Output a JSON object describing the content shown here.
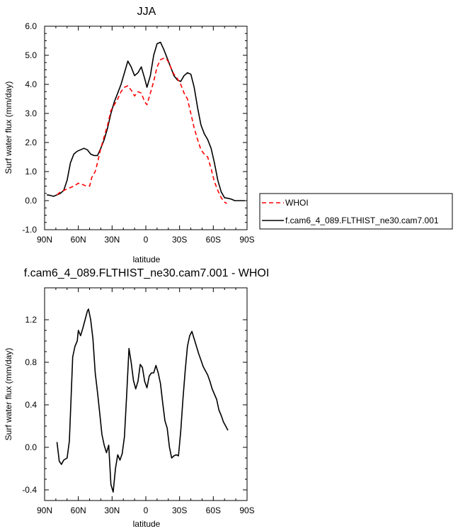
{
  "chart_data": [
    {
      "type": "line",
      "title": "JJA",
      "xlabel": "latitude",
      "ylabel": "Surf water flux (mm/day)",
      "xlim": [
        -90,
        90
      ],
      "ylim": [
        -1.0,
        6.0
      ],
      "x_ticks": [
        -90,
        -60,
        -30,
        0,
        30,
        60,
        90
      ],
      "x_tick_labels": [
        "90N",
        "60N",
        "30N",
        "0",
        "30S",
        "60S",
        "90S"
      ],
      "y_ticks": [
        -1.0,
        0.0,
        1.0,
        2.0,
        3.0,
        4.0,
        5.0,
        6.0
      ],
      "y_tick_labels": [
        "-1.0",
        "0.0",
        "1.0",
        "2.0",
        "3.0",
        "4.0",
        "5.0",
        "6.0"
      ],
      "grid": false,
      "legend_position": "right-outside",
      "series": [
        {
          "name": "WHOI",
          "color": "#ff0000",
          "dash": "dashed",
          "x": [
            -79,
            -76,
            -73,
            -70,
            -67,
            -64,
            -60,
            -56,
            -53,
            -50,
            -48,
            -45,
            -43,
            -40,
            -37,
            -34,
            -31,
            -28,
            -25,
            -22,
            -19,
            -16,
            -13,
            -10,
            -7,
            -4,
            -1,
            1,
            4,
            7,
            10,
            13,
            16,
            19,
            22,
            25,
            28,
            31,
            34,
            37,
            40,
            43,
            46,
            49,
            52,
            55,
            58,
            61,
            64,
            67,
            70,
            72
          ],
          "y": [
            0.2,
            0.3,
            0.35,
            0.4,
            0.45,
            0.5,
            0.6,
            0.55,
            0.5,
            0.5,
            0.8,
            1.0,
            1.3,
            1.8,
            2.2,
            2.6,
            3.1,
            3.3,
            3.5,
            3.75,
            3.9,
            3.95,
            3.8,
            3.6,
            3.75,
            3.7,
            3.4,
            3.3,
            3.7,
            4.1,
            4.6,
            4.85,
            4.9,
            4.85,
            4.6,
            4.35,
            4.2,
            4.0,
            3.7,
            3.5,
            3.0,
            2.5,
            2.1,
            1.75,
            1.6,
            1.5,
            1.1,
            0.65,
            0.35,
            0.1,
            -0.05,
            -0.1
          ]
        },
        {
          "name": "f.cam6_4_089.FLTHIST_ne30.cam7.001",
          "color": "#000000",
          "dash": "solid",
          "x": [
            -88,
            -85,
            -82,
            -79,
            -76,
            -73,
            -70,
            -67,
            -64,
            -61,
            -58,
            -55,
            -52,
            -49,
            -46,
            -43,
            -40,
            -37,
            -34,
            -31,
            -28,
            -25,
            -22,
            -19,
            -16,
            -13,
            -10,
            -7,
            -4,
            -1,
            1,
            4,
            7,
            10,
            13,
            16,
            19,
            22,
            25,
            28,
            31,
            34,
            37,
            40,
            43,
            46,
            49,
            52,
            55,
            58,
            61,
            64,
            67,
            70,
            73,
            76,
            79,
            82,
            85,
            88
          ],
          "y": [
            0.2,
            0.18,
            0.15,
            0.2,
            0.25,
            0.35,
            0.7,
            1.3,
            1.6,
            1.7,
            1.75,
            1.8,
            1.75,
            1.6,
            1.55,
            1.55,
            1.8,
            2.1,
            2.5,
            3.0,
            3.4,
            3.7,
            4.0,
            4.4,
            4.8,
            4.6,
            4.3,
            4.4,
            4.6,
            4.2,
            3.9,
            4.3,
            5.0,
            5.4,
            5.45,
            5.2,
            4.9,
            4.6,
            4.3,
            4.15,
            4.1,
            4.3,
            4.4,
            4.35,
            3.9,
            3.2,
            2.6,
            2.3,
            2.1,
            1.8,
            1.3,
            0.7,
            0.3,
            0.1,
            0.08,
            0.05,
            0.0,
            0.0,
            0.0,
            0.0
          ]
        }
      ]
    },
    {
      "type": "line",
      "title": "f.cam6_4_089.FLTHIST_ne30.cam7.001 - WHOI",
      "xlabel": "latitude",
      "ylabel": "Surf water flux (mm/day)",
      "xlim": [
        -90,
        90
      ],
      "ylim": [
        -0.5,
        1.5
      ],
      "x_ticks": [
        -90,
        -60,
        -30,
        0,
        30,
        60,
        90
      ],
      "x_tick_labels": [
        "90N",
        "60N",
        "30N",
        "0",
        "30S",
        "60S",
        "90S"
      ],
      "y_ticks": [
        -0.4,
        0.0,
        0.4,
        0.8,
        1.2
      ],
      "y_tick_labels": [
        "-0.4",
        "0.0",
        "0.4",
        "0.8",
        "1.2"
      ],
      "grid": false,
      "series": [
        {
          "color": "#000000",
          "dash": "solid",
          "x": [
            -79,
            -77,
            -75,
            -73,
            -70,
            -68,
            -65,
            -63,
            -61,
            -60,
            -58,
            -56,
            -54,
            -52,
            -51,
            -49,
            -47,
            -45,
            -43,
            -41,
            -39,
            -37,
            -35,
            -33,
            -31,
            -29,
            -27,
            -25,
            -23,
            -21,
            -19,
            -17,
            -15,
            -13,
            -11,
            -9,
            -7,
            -5,
            -3,
            -1,
            1,
            3,
            5,
            7,
            9,
            11,
            13,
            15,
            17,
            19,
            21,
            23,
            25,
            27,
            29,
            31,
            33,
            35,
            37,
            39,
            41,
            43,
            45,
            47,
            49,
            51,
            53,
            55,
            57,
            59,
            61,
            63,
            65,
            67,
            69,
            71,
            73
          ],
          "y": [
            0.05,
            -0.13,
            -0.16,
            -0.12,
            -0.1,
            0.06,
            0.85,
            0.95,
            1.0,
            1.1,
            1.05,
            1.12,
            1.2,
            1.28,
            1.3,
            1.2,
            1.02,
            0.7,
            0.52,
            0.32,
            0.12,
            0.02,
            -0.05,
            0.02,
            -0.35,
            -0.42,
            -0.2,
            -0.07,
            -0.12,
            -0.06,
            0.1,
            0.5,
            0.93,
            0.8,
            0.63,
            0.55,
            0.62,
            0.78,
            0.75,
            0.62,
            0.56,
            0.67,
            0.7,
            0.7,
            0.77,
            0.7,
            0.6,
            0.42,
            0.25,
            0.18,
            0.0,
            -0.1,
            -0.08,
            -0.07,
            -0.08,
            0.15,
            0.45,
            0.72,
            0.95,
            1.05,
            1.09,
            1.02,
            0.95,
            0.88,
            0.82,
            0.76,
            0.72,
            0.68,
            0.62,
            0.55,
            0.5,
            0.45,
            0.35,
            0.3,
            0.24,
            0.2,
            0.16
          ]
        }
      ]
    }
  ]
}
